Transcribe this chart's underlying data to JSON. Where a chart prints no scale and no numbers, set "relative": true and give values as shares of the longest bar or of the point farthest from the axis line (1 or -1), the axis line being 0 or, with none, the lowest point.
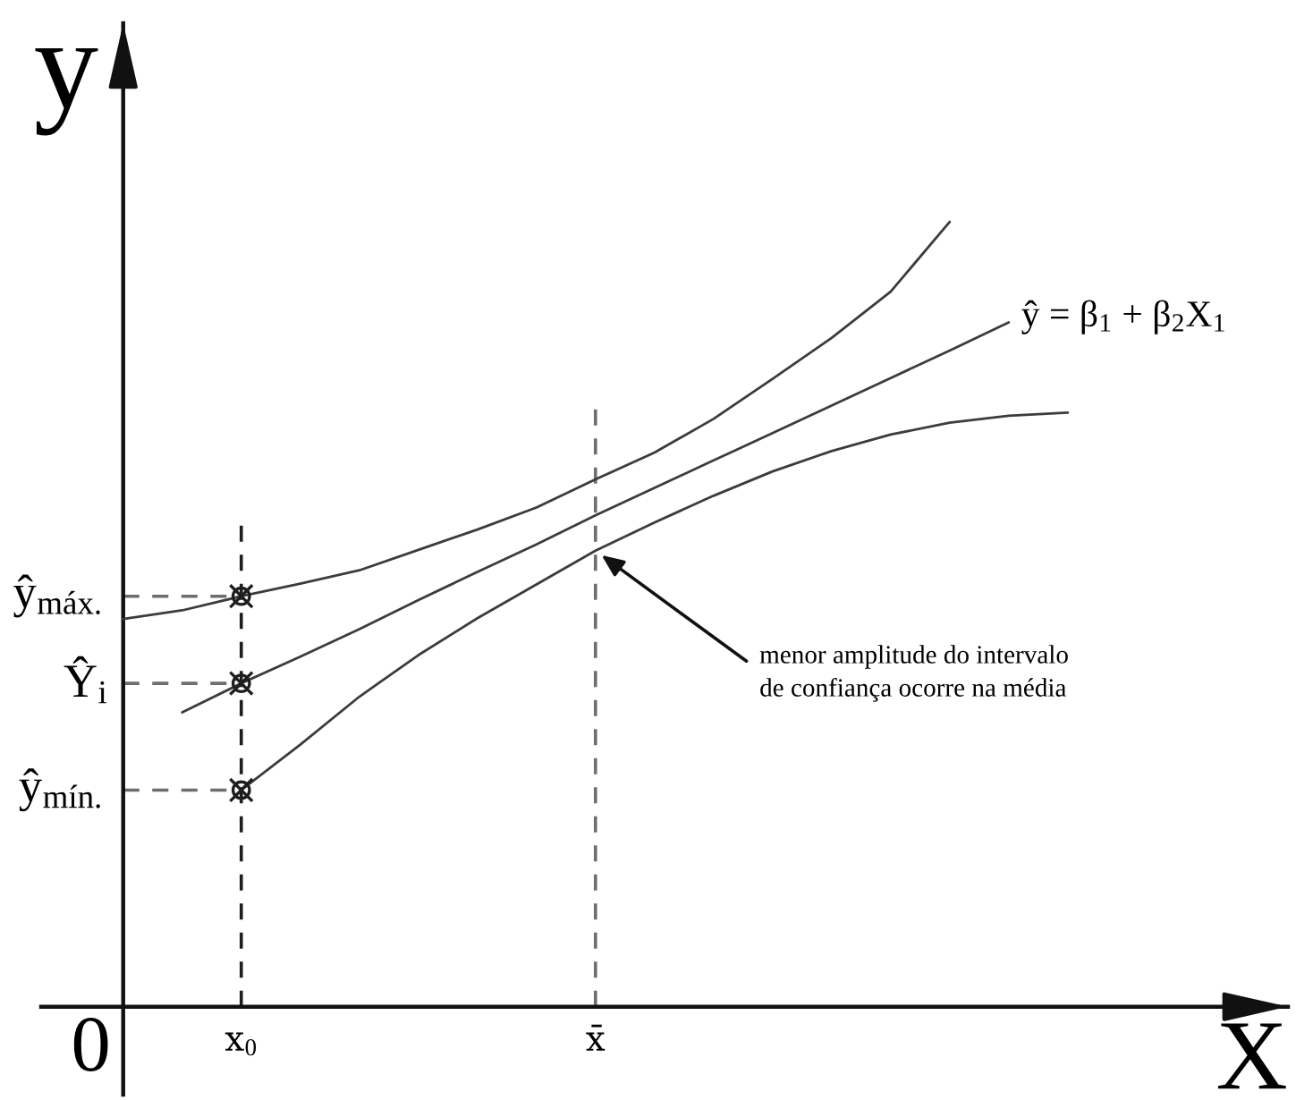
{
  "chart_data": {
    "type": "line",
    "relative": true,
    "xlabel": "X",
    "ylabel": "y",
    "categories": [
      null,
      null,
      "x$_{0}$",
      null,
      null,
      null,
      null,
      null,
      "x̄",
      null,
      null,
      null,
      null,
      null,
      null,
      null,
      null
    ],
    "series": [
      {
        "color": "#3c3c3c",
        "values": [
          0.494,
          0.505,
          0.523,
          0.539,
          0.556,
          0.582,
          0.608,
          0.636,
          0.672,
          0.706,
          0.749,
          0.8,
          0.852,
          0.911,
          1.0,
          null,
          null
        ]
      },
      {
        "name": "ŷ = β$_{1}$ + β$_{2}$X$_{1}$",
        "color": "#3c3c3c",
        "values": [
          null,
          0.375,
          0.412,
          0.446,
          0.481,
          0.518,
          0.554,
          0.589,
          0.626,
          0.661,
          0.696,
          0.731,
          0.766,
          0.801,
          0.836,
          0.872,
          null
        ]
      },
      {
        "color": "#3c3c3c",
        "values": [
          null,
          null,
          0.276,
          0.334,
          0.395,
          0.448,
          0.495,
          0.538,
          0.581,
          0.617,
          0.651,
          0.682,
          0.708,
          0.729,
          0.744,
          0.753,
          0.757
        ]
      },
      {
        "type": "scatter",
        "marker": "cross",
        "color": "#1e1e1e",
        "x": [
          "x$_{0}$",
          "x$_{0}$",
          "x$_{0}$"
        ],
        "values": [
          0.523,
          0.412,
          0.276
        ]
      }
    ],
    "ref_lines": [
      {
        "axis": "x",
        "value": "x$_{0}$",
        "color": "#1e1e1e",
        "line_style": "dashed"
      },
      {
        "axis": "x",
        "value": "x̄",
        "color": "#6e6e6e",
        "line_style": "dashed"
      },
      {
        "axis": "y",
        "value": 0.523,
        "label": "ŷ$_{máx.}$",
        "color": "#6e6e6e",
        "line_style": "dashed"
      },
      {
        "axis": "y",
        "value": 0.412,
        "label": "Ŷ$_{i}$",
        "color": "#6e6e6e",
        "line_style": "dashed"
      },
      {
        "axis": "y",
        "value": 0.276,
        "label": "ŷ$_{mín.}$",
        "color": "#6e6e6e",
        "line_style": "dashed"
      }
    ],
    "annotations": [
      "0",
      {
        "text": "menor amplitude do intervalo\nde confiança ocorre na média",
        "x": "x̄",
        "y": 0.581
      }
    ]
  }
}
